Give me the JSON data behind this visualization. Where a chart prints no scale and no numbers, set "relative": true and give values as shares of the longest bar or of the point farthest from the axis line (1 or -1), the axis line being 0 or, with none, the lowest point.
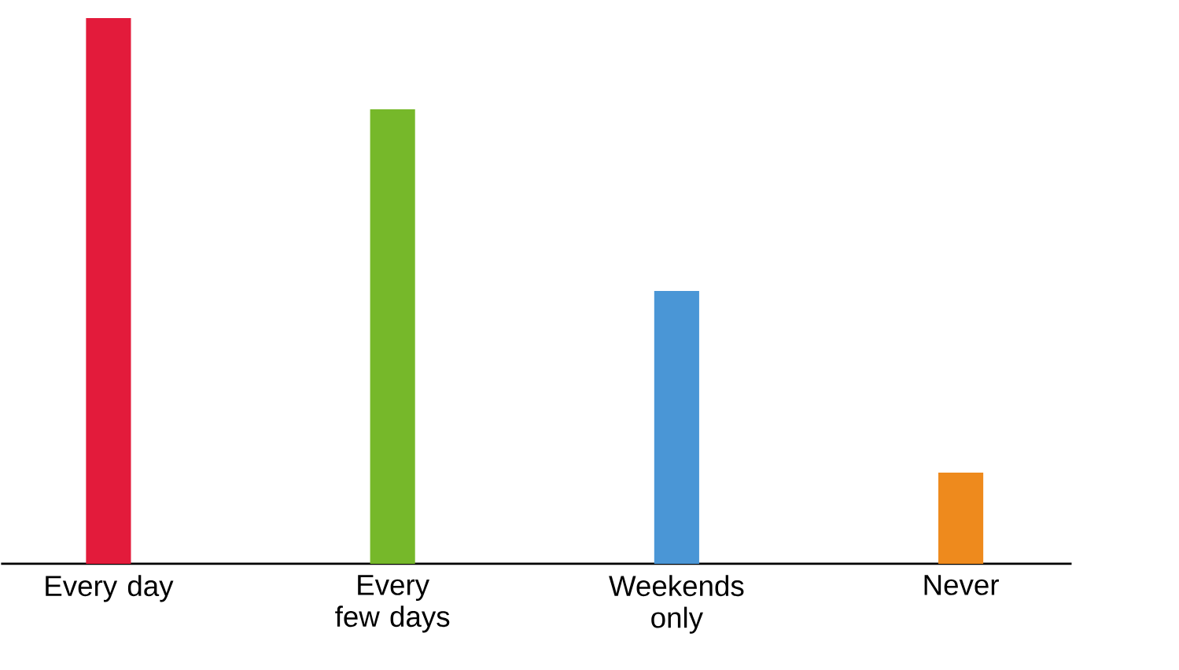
{
  "chart_data": {
    "type": "bar",
    "relative": true,
    "categories": [
      "Every day",
      "Every few days",
      "Weekends only",
      "Never"
    ],
    "values": [
      1,
      0.833,
      0.5,
      0.167
    ],
    "colors": [
      "#e31b3b",
      "#76b82a",
      "#4a96d6",
      "#ee8a1d"
    ]
  }
}
